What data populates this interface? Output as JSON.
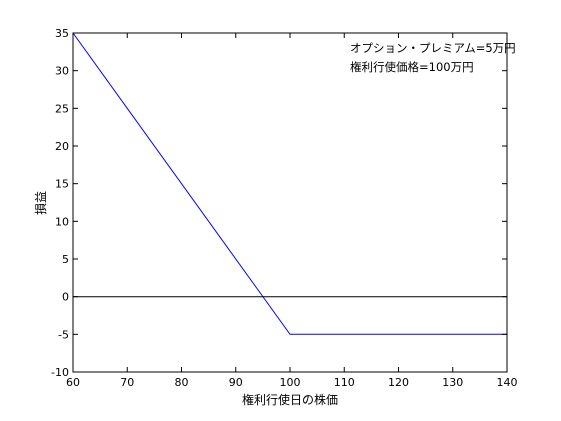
{
  "chart_data": {
    "type": "line",
    "xlabel": "権利行使日の株価",
    "ylabel": "損益",
    "xlim": [
      60,
      140
    ],
    "ylim": [
      -10,
      35
    ],
    "x_ticks": [
      "60",
      "70",
      "80",
      "90",
      "100",
      "110",
      "120",
      "130",
      "140"
    ],
    "y_ticks": [
      "-10",
      "-5",
      "0",
      "5",
      "10",
      "15",
      "20",
      "25",
      "30",
      "35"
    ],
    "grid": false,
    "annotations": [
      "オプション・プレミアム=5万円",
      "権利行使価格=100万円"
    ],
    "series": [
      {
        "x": [
          60,
          100,
          140
        ],
        "y": [
          35,
          -5,
          -5
        ],
        "color": "#0000ff"
      },
      {
        "x": [
          60,
          140
        ],
        "y": [
          0,
          0
        ],
        "color": "#000000"
      }
    ]
  }
}
